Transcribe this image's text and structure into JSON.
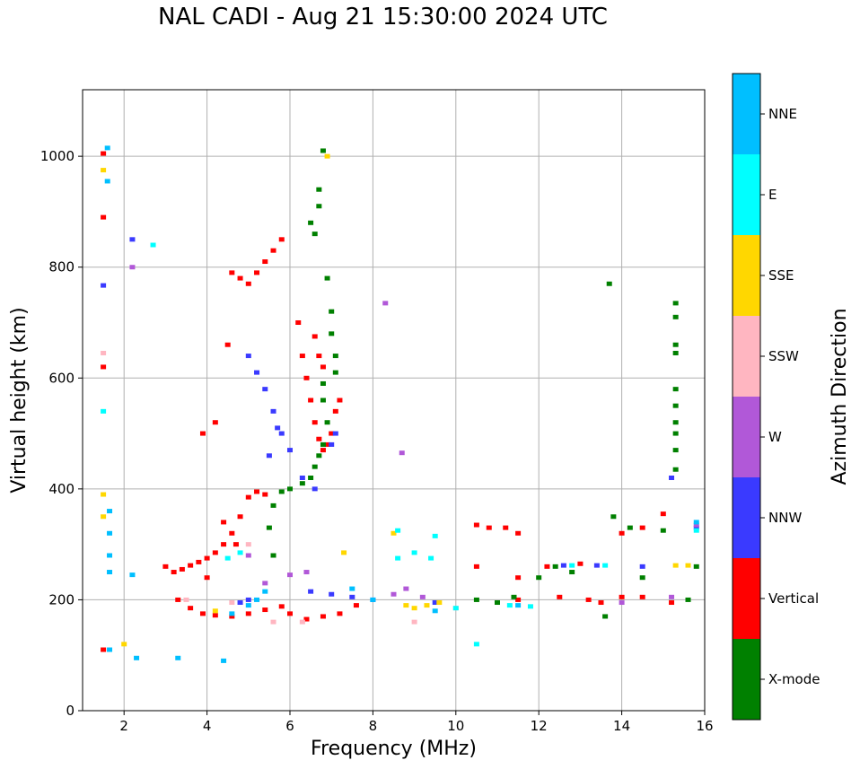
{
  "chart_data": {
    "type": "scatter",
    "title": "NAL CADI - Aug 21 15:30:00 2024 UTC",
    "xlabel": "Frequency (MHz)",
    "ylabel": "Virtual height (km)",
    "xlim": [
      1,
      16
    ],
    "ylim": [
      0,
      1120
    ],
    "xticks": [
      "2",
      "4",
      "6",
      "8",
      "10",
      "12",
      "14",
      "16"
    ],
    "xtick_values": [
      2,
      4,
      6,
      8,
      10,
      12,
      14,
      16
    ],
    "yticks": [
      "0",
      "200",
      "400",
      "600",
      "800",
      "1000"
    ],
    "ytick_values": [
      0,
      200,
      400,
      600,
      800,
      1000
    ],
    "grid": true,
    "colorbar": {
      "label": "Azimuth Direction",
      "categories": [
        {
          "name": "X-mode",
          "color": "#008000"
        },
        {
          "name": "Vertical",
          "color": "#ff0000"
        },
        {
          "name": "NNW",
          "color": "#3a3aff"
        },
        {
          "name": "W",
          "color": "#b158d8"
        },
        {
          "name": "SSW",
          "color": "#ffb6c1"
        },
        {
          "name": "SSE",
          "color": "#ffd700"
        },
        {
          "name": "E",
          "color": "#00ffff"
        },
        {
          "name": "NNE",
          "color": "#00bfff"
        }
      ]
    },
    "series": [
      {
        "name": "Vertical",
        "points": [
          [
            3.0,
            260
          ],
          [
            3.2,
            250
          ],
          [
            3.4,
            255
          ],
          [
            3.6,
            262
          ],
          [
            3.8,
            268
          ],
          [
            4.0,
            275
          ],
          [
            4.2,
            285
          ],
          [
            4.4,
            300
          ],
          [
            4.6,
            320
          ],
          [
            4.8,
            350
          ],
          [
            5.0,
            385
          ],
          [
            5.2,
            395
          ],
          [
            5.4,
            390
          ],
          [
            3.3,
            200
          ],
          [
            3.6,
            185
          ],
          [
            3.9,
            175
          ],
          [
            4.2,
            172
          ],
          [
            4.6,
            170
          ],
          [
            5.0,
            175
          ],
          [
            5.4,
            182
          ],
          [
            5.8,
            188
          ],
          [
            6.0,
            175
          ],
          [
            6.4,
            165
          ],
          [
            6.8,
            170
          ],
          [
            7.2,
            175
          ],
          [
            7.6,
            190
          ],
          [
            4.8,
            780
          ],
          [
            5.0,
            770
          ],
          [
            5.2,
            790
          ],
          [
            5.4,
            810
          ],
          [
            5.6,
            830
          ],
          [
            5.8,
            850
          ],
          [
            4.6,
            790
          ],
          [
            6.2,
            700
          ],
          [
            6.3,
            640
          ],
          [
            6.4,
            600
          ],
          [
            6.5,
            560
          ],
          [
            6.6,
            520
          ],
          [
            6.7,
            490
          ],
          [
            6.8,
            470
          ],
          [
            6.9,
            480
          ],
          [
            7.0,
            500
          ],
          [
            7.1,
            540
          ],
          [
            7.2,
            560
          ],
          [
            6.6,
            675
          ],
          [
            6.7,
            640
          ],
          [
            6.8,
            620
          ],
          [
            4.5,
            660
          ],
          [
            4.2,
            520
          ],
          [
            3.9,
            500
          ],
          [
            10.5,
            260
          ],
          [
            10.5,
            335
          ],
          [
            10.8,
            330
          ],
          [
            11.2,
            330
          ],
          [
            11.5,
            320
          ],
          [
            12.2,
            260
          ],
          [
            13.0,
            265
          ],
          [
            14.0,
            320
          ],
          [
            14.5,
            330
          ],
          [
            15.0,
            355
          ],
          [
            11.5,
            240
          ],
          [
            11.5,
            200
          ],
          [
            12.5,
            205
          ],
          [
            13.2,
            200
          ],
          [
            13.5,
            195
          ],
          [
            14.0,
            205
          ],
          [
            14.5,
            205
          ],
          [
            15.2,
            195
          ],
          [
            1.5,
            1005
          ],
          [
            1.5,
            890
          ],
          [
            1.5,
            620
          ],
          [
            1.5,
            110
          ],
          [
            4.0,
            240
          ],
          [
            4.4,
            340
          ],
          [
            4.7,
            300
          ]
        ]
      },
      {
        "name": "X-mode",
        "points": [
          [
            6.8,
            1010
          ],
          [
            6.7,
            940
          ],
          [
            6.7,
            910
          ],
          [
            6.5,
            880
          ],
          [
            6.6,
            860
          ],
          [
            6.9,
            780
          ],
          [
            7.0,
            720
          ],
          [
            7.0,
            680
          ],
          [
            7.1,
            640
          ],
          [
            7.1,
            610
          ],
          [
            6.8,
            590
          ],
          [
            6.8,
            560
          ],
          [
            6.9,
            520
          ],
          [
            6.8,
            480
          ],
          [
            6.7,
            460
          ],
          [
            6.6,
            440
          ],
          [
            6.5,
            420
          ],
          [
            6.3,
            410
          ],
          [
            6.0,
            400
          ],
          [
            5.8,
            395
          ],
          [
            5.6,
            370
          ],
          [
            5.5,
            330
          ],
          [
            5.6,
            280
          ],
          [
            10.5,
            200
          ],
          [
            11.0,
            195
          ],
          [
            11.4,
            205
          ],
          [
            12.4,
            260
          ],
          [
            12.8,
            250
          ],
          [
            13.6,
            170
          ],
          [
            13.7,
            770
          ],
          [
            13.8,
            350
          ],
          [
            14.2,
            330
          ],
          [
            15.0,
            325
          ],
          [
            15.3,
            735
          ],
          [
            15.3,
            710
          ],
          [
            15.3,
            660
          ],
          [
            15.3,
            645
          ],
          [
            15.3,
            580
          ],
          [
            15.3,
            550
          ],
          [
            15.3,
            520
          ],
          [
            15.3,
            500
          ],
          [
            15.3,
            470
          ],
          [
            15.3,
            435
          ],
          [
            15.6,
            200
          ],
          [
            15.8,
            260
          ],
          [
            12.0,
            240
          ],
          [
            14.5,
            240
          ]
        ]
      },
      {
        "name": "NNW",
        "points": [
          [
            5.0,
            640
          ],
          [
            5.2,
            610
          ],
          [
            5.4,
            580
          ],
          [
            5.6,
            540
          ],
          [
            5.8,
            500
          ],
          [
            6.0,
            470
          ],
          [
            6.3,
            420
          ],
          [
            6.6,
            400
          ],
          [
            7.0,
            480
          ],
          [
            7.1,
            500
          ],
          [
            5.5,
            460
          ],
          [
            5.7,
            510
          ],
          [
            1.5,
            767
          ],
          [
            2.2,
            850
          ],
          [
            6.5,
            215
          ],
          [
            7.0,
            210
          ],
          [
            7.5,
            205
          ],
          [
            8.0,
            200
          ],
          [
            5.0,
            200
          ],
          [
            4.8,
            195
          ],
          [
            9.5,
            195
          ],
          [
            14.5,
            260
          ],
          [
            15.2,
            420
          ],
          [
            15.8,
            330
          ],
          [
            12.6,
            262
          ],
          [
            13.4,
            262
          ]
        ]
      },
      {
        "name": "W",
        "points": [
          [
            8.5,
            210
          ],
          [
            8.8,
            220
          ],
          [
            9.2,
            205
          ],
          [
            8.7,
            465
          ],
          [
            8.3,
            735
          ],
          [
            6.4,
            250
          ],
          [
            6.0,
            245
          ],
          [
            5.4,
            230
          ],
          [
            5.0,
            280
          ],
          [
            15.8,
            335
          ],
          [
            15.2,
            205
          ],
          [
            14.0,
            195
          ],
          [
            2.2,
            800
          ]
        ]
      },
      {
        "name": "SSW",
        "points": [
          [
            6.3,
            160
          ],
          [
            5.6,
            160
          ],
          [
            4.6,
            195
          ],
          [
            3.5,
            200
          ],
          [
            5.0,
            300
          ],
          [
            1.5,
            645
          ],
          [
            9.0,
            160
          ],
          [
            10.0,
            185
          ]
        ]
      },
      {
        "name": "SSE",
        "points": [
          [
            8.8,
            190
          ],
          [
            9.0,
            185
          ],
          [
            9.3,
            190
          ],
          [
            9.6,
            195
          ],
          [
            8.5,
            320
          ],
          [
            15.3,
            262
          ],
          [
            15.6,
            262
          ],
          [
            1.5,
            350
          ],
          [
            1.5,
            390
          ],
          [
            1.5,
            975
          ],
          [
            2.0,
            120
          ],
          [
            4.2,
            180
          ],
          [
            7.3,
            285
          ],
          [
            6.9,
            1000
          ]
        ]
      },
      {
        "name": "E",
        "points": [
          [
            8.6,
            275
          ],
          [
            9.0,
            285
          ],
          [
            9.4,
            275
          ],
          [
            8.6,
            325
          ],
          [
            9.5,
            315
          ],
          [
            10.0,
            185
          ],
          [
            10.5,
            120
          ],
          [
            11.3,
            190
          ],
          [
            11.8,
            188
          ],
          [
            12.8,
            262
          ],
          [
            13.6,
            262
          ],
          [
            4.5,
            275
          ],
          [
            4.8,
            285
          ],
          [
            1.5,
            540
          ],
          [
            2.7,
            840
          ],
          [
            15.8,
            325
          ]
        ]
      },
      {
        "name": "NNE",
        "points": [
          [
            1.65,
            360
          ],
          [
            1.65,
            320
          ],
          [
            1.65,
            280
          ],
          [
            1.65,
            250
          ],
          [
            1.65,
            110
          ],
          [
            1.6,
            1015
          ],
          [
            1.6,
            955
          ],
          [
            2.3,
            95
          ],
          [
            3.3,
            95
          ],
          [
            4.4,
            90
          ],
          [
            5.4,
            215
          ],
          [
            5.2,
            200
          ],
          [
            5.0,
            190
          ],
          [
            4.6,
            175
          ],
          [
            7.5,
            220
          ],
          [
            8.0,
            200
          ],
          [
            9.5,
            180
          ],
          [
            11.5,
            190
          ],
          [
            15.8,
            340
          ],
          [
            2.2,
            245
          ]
        ]
      }
    ]
  }
}
